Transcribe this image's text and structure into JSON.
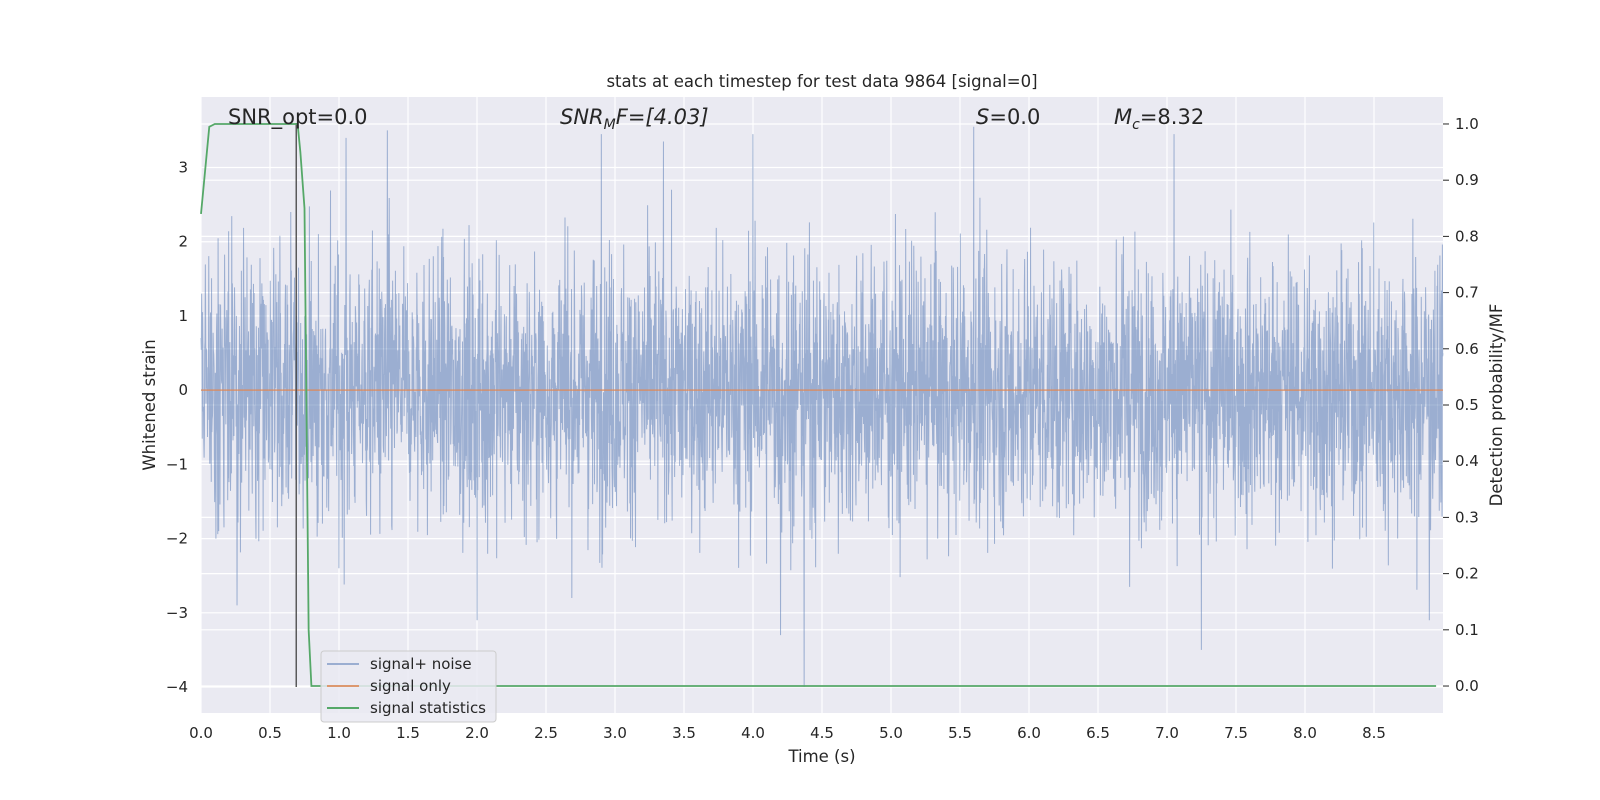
{
  "chart_data": {
    "type": "line",
    "title": "stats at each timestep for test data 9864 [signal=0]",
    "xlabel": "Time (s)",
    "ylabel": "Whitened strain",
    "y2label": "Detection probability/MF",
    "xlim": [
      0.0,
      9.0
    ],
    "ylim": [
      -4.35,
      3.95
    ],
    "y2lim": [
      -0.048,
      1.048
    ],
    "grid": true,
    "legend_position": "lower-left",
    "x_ticks": [
      "0.0",
      "0.5",
      "1.0",
      "1.5",
      "2.0",
      "2.5",
      "3.0",
      "3.5",
      "4.0",
      "4.5",
      "5.0",
      "5.5",
      "6.0",
      "6.5",
      "7.0",
      "7.5",
      "8.0",
      "8.5"
    ],
    "y_ticks": [
      "3",
      "2",
      "1",
      "0",
      "−1",
      "−2",
      "−3",
      "−4"
    ],
    "y2_ticks": [
      "1.0",
      "0.9",
      "0.8",
      "0.7",
      "0.6",
      "0.5",
      "0.4",
      "0.3",
      "0.2",
      "0.1",
      "0.0"
    ],
    "annotations": {
      "snr_opt": "SNR_opt=0.0",
      "snr_mf_base": "SNR",
      "snr_mf_sub": "M",
      "snr_mf_rest": "F=[4.03]",
      "s_var": "S",
      "s_rest": "=0.0",
      "mc_var": "M",
      "mc_sub": "c",
      "mc_rest": "=8.32"
    },
    "series": [
      {
        "name": "signal+ noise",
        "color": "#4c72b0",
        "axis": "left",
        "duration": 9.0,
        "samples": 4000,
        "sigma": 0.9,
        "peaks": [
          {
            "x": 0.65,
            "y": 2.4
          },
          {
            "x": 1.05,
            "y": 3.4
          },
          {
            "x": 1.35,
            "y": 3.5
          },
          {
            "x": 2.9,
            "y": 3.45
          },
          {
            "x": 3.35,
            "y": 3.35
          },
          {
            "x": 4.0,
            "y": 3.45
          },
          {
            "x": 5.6,
            "y": 3.55
          },
          {
            "x": 7.05,
            "y": 3.45
          },
          {
            "x": 7.25,
            "y": 3.4
          },
          {
            "x": 4.2,
            "y": -3.3
          },
          {
            "x": 2.0,
            "y": -3.1
          },
          {
            "x": 4.37,
            "y": -4.0
          },
          {
            "x": 7.25,
            "y": -3.5
          },
          {
            "x": 8.9,
            "y": -3.1
          }
        ]
      },
      {
        "name": "signal only",
        "color": "#dd8452",
        "axis": "left",
        "x": [
          0.0,
          9.0
        ],
        "y": [
          0.0,
          0.0
        ]
      },
      {
        "name": "signal statistics",
        "color": "#55a868",
        "axis": "right",
        "x": [
          0.0,
          0.06,
          0.1,
          0.15,
          0.2,
          0.3,
          0.4,
          0.5,
          0.6,
          0.68,
          0.7,
          0.72,
          0.75,
          0.78,
          0.8,
          0.83,
          0.9,
          1.0,
          2.0,
          4.0,
          6.0,
          8.0,
          8.95
        ],
        "y": [
          0.84,
          0.995,
          1.0,
          1.0,
          1.0,
          1.0,
          1.0,
          1.0,
          1.0,
          1.0,
          1.0,
          0.95,
          0.85,
          0.1,
          0.0,
          0.0,
          0.0,
          0.0,
          0.0,
          0.0,
          0.0,
          0.0,
          0.0
        ]
      }
    ],
    "vline": {
      "x": 0.69,
      "ymin": -4.0,
      "ymax": 3.6,
      "color": "#444444"
    }
  }
}
